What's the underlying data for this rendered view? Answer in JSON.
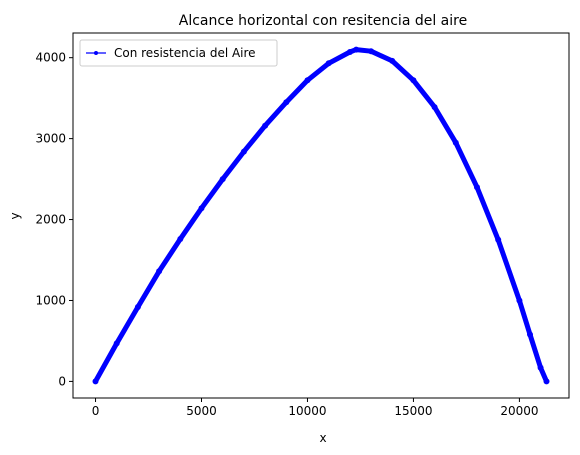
{
  "chart_data": {
    "type": "line",
    "title": "Alcance horizontal con resitencia del aire",
    "xlabel": "x",
    "ylabel": "y",
    "xlim": [
      -1063,
      22340
    ],
    "ylim": [
      -205,
      4305
    ],
    "xticks": [
      0,
      5000,
      10000,
      15000,
      20000
    ],
    "xtick_labels": [
      "0",
      "5000",
      "10000",
      "15000",
      "20000"
    ],
    "yticks": [
      0,
      1000,
      2000,
      3000,
      4000
    ],
    "ytick_labels": [
      "0",
      "1000",
      "2000",
      "3000",
      "4000"
    ],
    "grid": false,
    "legend": {
      "location": "upper left",
      "entries": [
        "Con resistencia del Aire"
      ]
    },
    "series": [
      {
        "name": "Con resistencia del Aire",
        "color": "#0000ff",
        "marker": "point",
        "x": [
          0,
          1000,
          2000,
          3000,
          4000,
          5000,
          6000,
          7000,
          8000,
          9000,
          10000,
          11000,
          12000,
          12300,
          13000,
          14000,
          15000,
          16000,
          17000,
          18000,
          19000,
          20000,
          20500,
          21000,
          21280
        ],
        "y": [
          0,
          470,
          920,
          1360,
          1760,
          2140,
          2500,
          2840,
          3160,
          3450,
          3720,
          3930,
          4070,
          4100,
          4080,
          3960,
          3720,
          3390,
          2950,
          2400,
          1750,
          1000,
          580,
          170,
          0
        ]
      }
    ]
  }
}
